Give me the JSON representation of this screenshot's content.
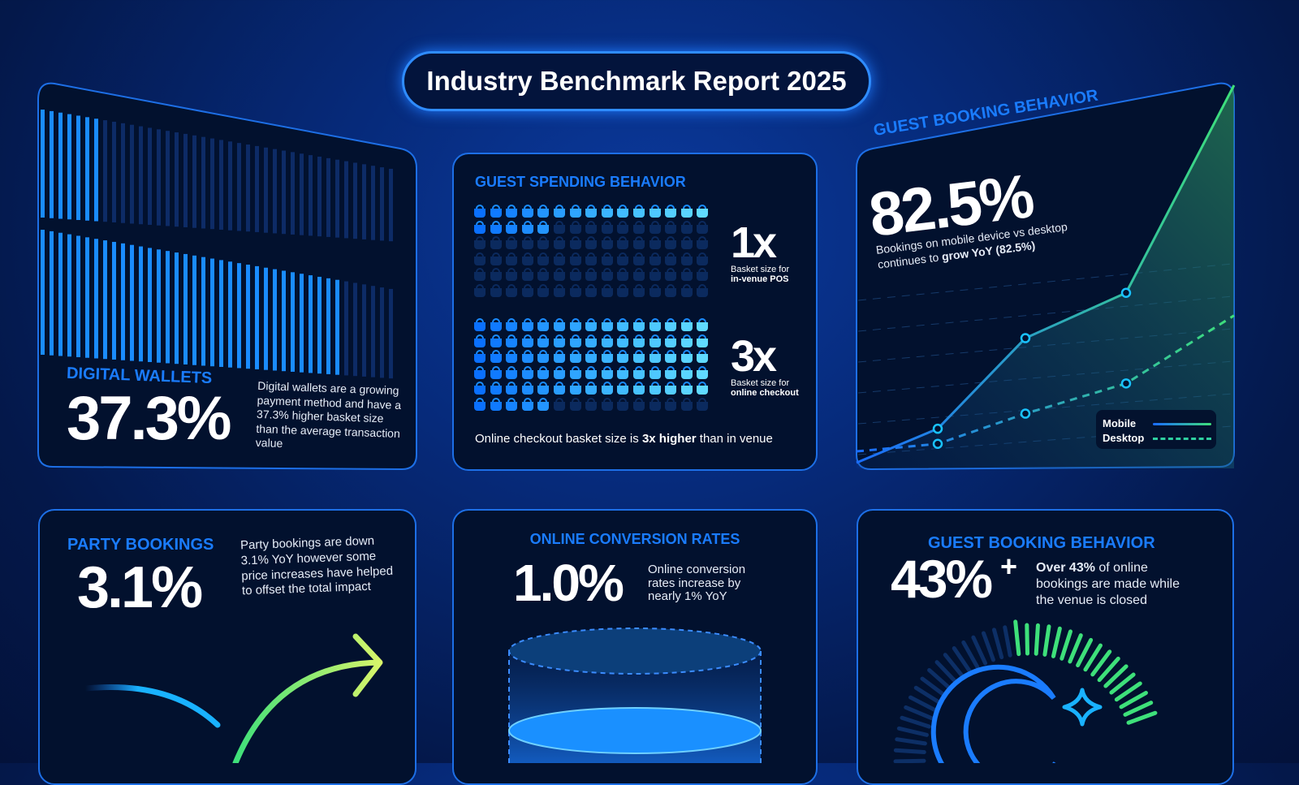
{
  "title": "Industry Benchmark Report 2025",
  "digital_wallets": {
    "heading": "DIGITAL WALLETS",
    "value": "37.3%",
    "description": "Digital wallets are a growing payment method and have a 37.3% higher basket size than the average transaction value",
    "bars_top_fill": 0.17,
    "bars_bottom_fill": 0.86
  },
  "spending": {
    "heading": "GUEST SPENDING BEHAVIOR",
    "grid_columns": 15,
    "grid_rows": 6,
    "pos": {
      "multiplier": "1x",
      "label": "Basket size for",
      "label_bold": "in-venue POS",
      "filled": 20
    },
    "online": {
      "multiplier": "3x",
      "label": "Basket size for",
      "label_bold": "online checkout",
      "filled": 80
    },
    "footer_pre": "Online checkout basket size is ",
    "footer_bold": "3x higher",
    "footer_post": " than in venue"
  },
  "booking": {
    "heading": "GUEST BOOKING BEHAVIOR",
    "value": "82.5%",
    "desc_line1": "Bookings on mobile device vs desktop",
    "desc_pre": "continues to ",
    "desc_bold": "grow YoY (82.5%)",
    "legend": [
      {
        "name": "Mobile"
      },
      {
        "name": "Desktop"
      }
    ],
    "chart_data": {
      "type": "line",
      "series": [
        {
          "name": "Mobile",
          "values": [
            0,
            9,
            33,
            45,
            100
          ]
        },
        {
          "name": "Desktop",
          "values": [
            3,
            5,
            13,
            21,
            39
          ]
        }
      ],
      "grid": true
    }
  },
  "party": {
    "heading": "PARTY BOOKINGS",
    "value": "3.1%",
    "description": "Party bookings are down 3.1% YoY however some price increases have helped to offset the total impact"
  },
  "conversion": {
    "heading": "ONLINE CONVERSION RATES",
    "value": "1.0%",
    "description": "Online conversion rates increase by nearly 1% YoY"
  },
  "closed": {
    "heading": "GUEST BOOKING BEHAVIOR",
    "value": "43%",
    "plus": "+",
    "desc_bold": "Over 43%",
    "desc_rest": " of online bookings are made while the venue is closed",
    "gauge_fill": 0.43
  },
  "colors": {
    "accent": "#1a7cff",
    "green": "#3ee07a",
    "cyan": "#19c2ff"
  }
}
